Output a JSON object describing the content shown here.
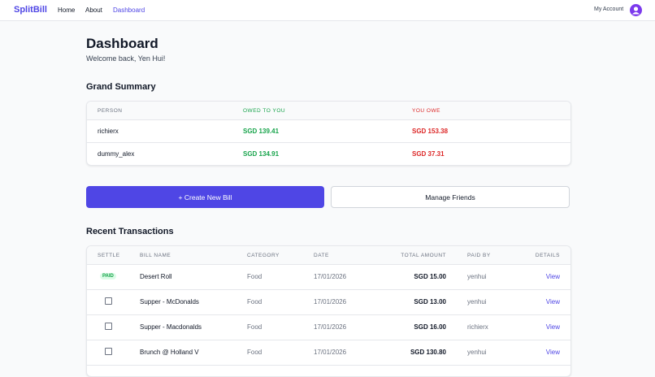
{
  "nav": {
    "brand": "SplitBill",
    "links": [
      "Home",
      "About",
      "Dashboard"
    ],
    "account": "My Account"
  },
  "header": {
    "title": "Dashboard",
    "welcome": "Welcome back, Yen Hui!"
  },
  "summary": {
    "title": "Grand Summary",
    "columns": [
      "PERSON",
      "OWED TO YOU",
      "YOU OWE"
    ],
    "rows": [
      [
        "richierx",
        "SGD 139.41",
        "SGD 153.38"
      ],
      [
        "dummy_alex",
        "SGD 134.91",
        "SGD 37.31"
      ]
    ]
  },
  "actions": [
    "+ Create New Bill",
    "Manage Friends"
  ],
  "transactions": {
    "title": "Recent Transactions",
    "columns": [
      "SETTLE",
      "BILL NAME",
      "CATEGORY",
      "DATE",
      "TOTAL AMOUNT",
      "PAID BY",
      "DETAILS"
    ],
    "rows": [
      {
        "status": "PAID",
        "cells": [
          "Desert Roll",
          "Food",
          "17/01/2026",
          "SGD 15.00",
          "yenhui",
          "View"
        ]
      },
      {
        "cells": [
          "Supper - McDonalds",
          "Food",
          "17/01/2026",
          "SGD 13.00",
          "yenhui",
          "View"
        ]
      },
      {
        "cells": [
          "Supper - Macdonalds",
          "Food",
          "17/01/2026",
          "SGD 16.00",
          "richierx",
          "View"
        ]
      },
      {
        "cells": [
          "Brunch @ Holland V",
          "Food",
          "17/01/2026",
          "SGD 130.80",
          "yenhui",
          "View"
        ]
      }
    ]
  }
}
